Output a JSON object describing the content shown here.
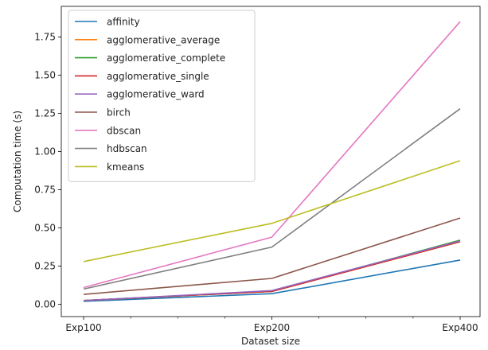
{
  "chart_data": {
    "type": "line",
    "title": "",
    "xlabel": "Dataset size",
    "ylabel": "Computation time (s)",
    "categories": [
      "Exp100",
      "Exp200",
      "Exp400"
    ],
    "ylim": [
      -0.08,
      1.95
    ],
    "yticks": [
      "0.00",
      "0.25",
      "0.50",
      "0.75",
      "1.00",
      "1.25",
      "1.50",
      "1.75"
    ],
    "grid": false,
    "legend_position": "top-left",
    "series": [
      {
        "name": "affinity",
        "color": "#1f77b4",
        "values": [
          0.02,
          0.07,
          0.29
        ]
      },
      {
        "name": "agglomerative_average",
        "color": "#ff7f0e",
        "values": [
          0.025,
          0.085,
          0.41
        ]
      },
      {
        "name": "agglomerative_complete",
        "color": "#2ca02c",
        "values": [
          0.025,
          0.085,
          0.42
        ]
      },
      {
        "name": "agglomerative_single",
        "color": "#d62728",
        "values": [
          0.025,
          0.085,
          0.41
        ]
      },
      {
        "name": "agglomerative_ward",
        "color": "#9467bd",
        "values": [
          0.025,
          0.09,
          0.415
        ]
      },
      {
        "name": "birch",
        "color": "#8c564b",
        "values": [
          0.065,
          0.17,
          0.565
        ]
      },
      {
        "name": "dbscan",
        "color": "#e377c2",
        "values": [
          0.11,
          0.44,
          1.85
        ]
      },
      {
        "name": "hdbscan",
        "color": "#7f7f7f",
        "values": [
          0.1,
          0.375,
          1.28
        ]
      },
      {
        "name": "kmeans",
        "color": "#bcbd22",
        "values": [
          0.28,
          0.53,
          0.94
        ]
      }
    ]
  }
}
